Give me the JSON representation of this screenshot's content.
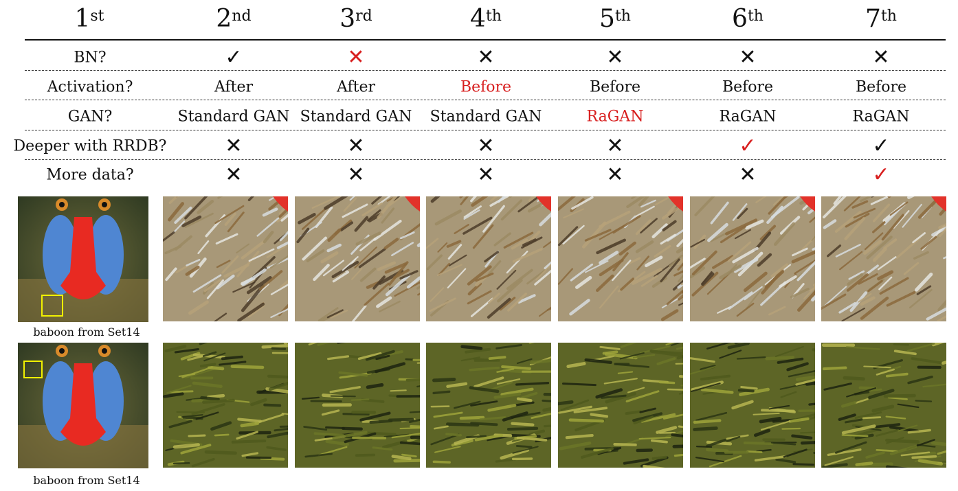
{
  "columns": [
    {
      "num": "1",
      "sup": "st"
    },
    {
      "num": "2",
      "sup": "nd"
    },
    {
      "num": "3",
      "sup": "rd"
    },
    {
      "num": "4",
      "sup": "th"
    },
    {
      "num": "5",
      "sup": "th"
    },
    {
      "num": "6",
      "sup": "th"
    },
    {
      "num": "7",
      "sup": "th"
    }
  ],
  "rows": [
    {
      "label": "BN?",
      "cells": [
        {
          "text": "✓",
          "red": false,
          "mark": true
        },
        {
          "text": "✕",
          "red": true,
          "mark": true
        },
        {
          "text": "✕",
          "red": false,
          "mark": true
        },
        {
          "text": "✕",
          "red": false,
          "mark": true
        },
        {
          "text": "✕",
          "red": false,
          "mark": true
        },
        {
          "text": "✕",
          "red": false,
          "mark": true
        }
      ]
    },
    {
      "label": "Activation?",
      "cells": [
        {
          "text": "After",
          "red": false
        },
        {
          "text": "After",
          "red": false
        },
        {
          "text": "Before",
          "red": true
        },
        {
          "text": "Before",
          "red": false
        },
        {
          "text": "Before",
          "red": false
        },
        {
          "text": "Before",
          "red": false
        }
      ]
    },
    {
      "label": "GAN?",
      "cells": [
        {
          "text": "Standard GAN",
          "red": false
        },
        {
          "text": "Standard GAN",
          "red": false
        },
        {
          "text": "Standard GAN",
          "red": false
        },
        {
          "text": "RaGAN",
          "red": true
        },
        {
          "text": "RaGAN",
          "red": false
        },
        {
          "text": "RaGAN",
          "red": false
        }
      ]
    },
    {
      "label": "Deeper with RRDB?",
      "cells": [
        {
          "text": "✕",
          "red": false,
          "mark": true
        },
        {
          "text": "✕",
          "red": false,
          "mark": true
        },
        {
          "text": "✕",
          "red": false,
          "mark": true
        },
        {
          "text": "✕",
          "red": false,
          "mark": true
        },
        {
          "text": "✓",
          "red": true,
          "mark": true
        },
        {
          "text": "✓",
          "red": false,
          "mark": true
        }
      ]
    },
    {
      "label": "More data?",
      "cells": [
        {
          "text": "✕",
          "red": false,
          "mark": true
        },
        {
          "text": "✕",
          "red": false,
          "mark": true
        },
        {
          "text": "✕",
          "red": false,
          "mark": true
        },
        {
          "text": "✕",
          "red": false,
          "mark": true
        },
        {
          "text": "✕",
          "red": false,
          "mark": true
        },
        {
          "text": "✓",
          "red": true,
          "mark": true
        }
      ]
    }
  ],
  "captions": [
    "baboon from Set14",
    "baboon from Set14"
  ],
  "colors": {
    "highlight": "#d81f1f",
    "box": "#f2f200"
  },
  "patch_styles": [
    "fur-light",
    "foliage-green"
  ]
}
